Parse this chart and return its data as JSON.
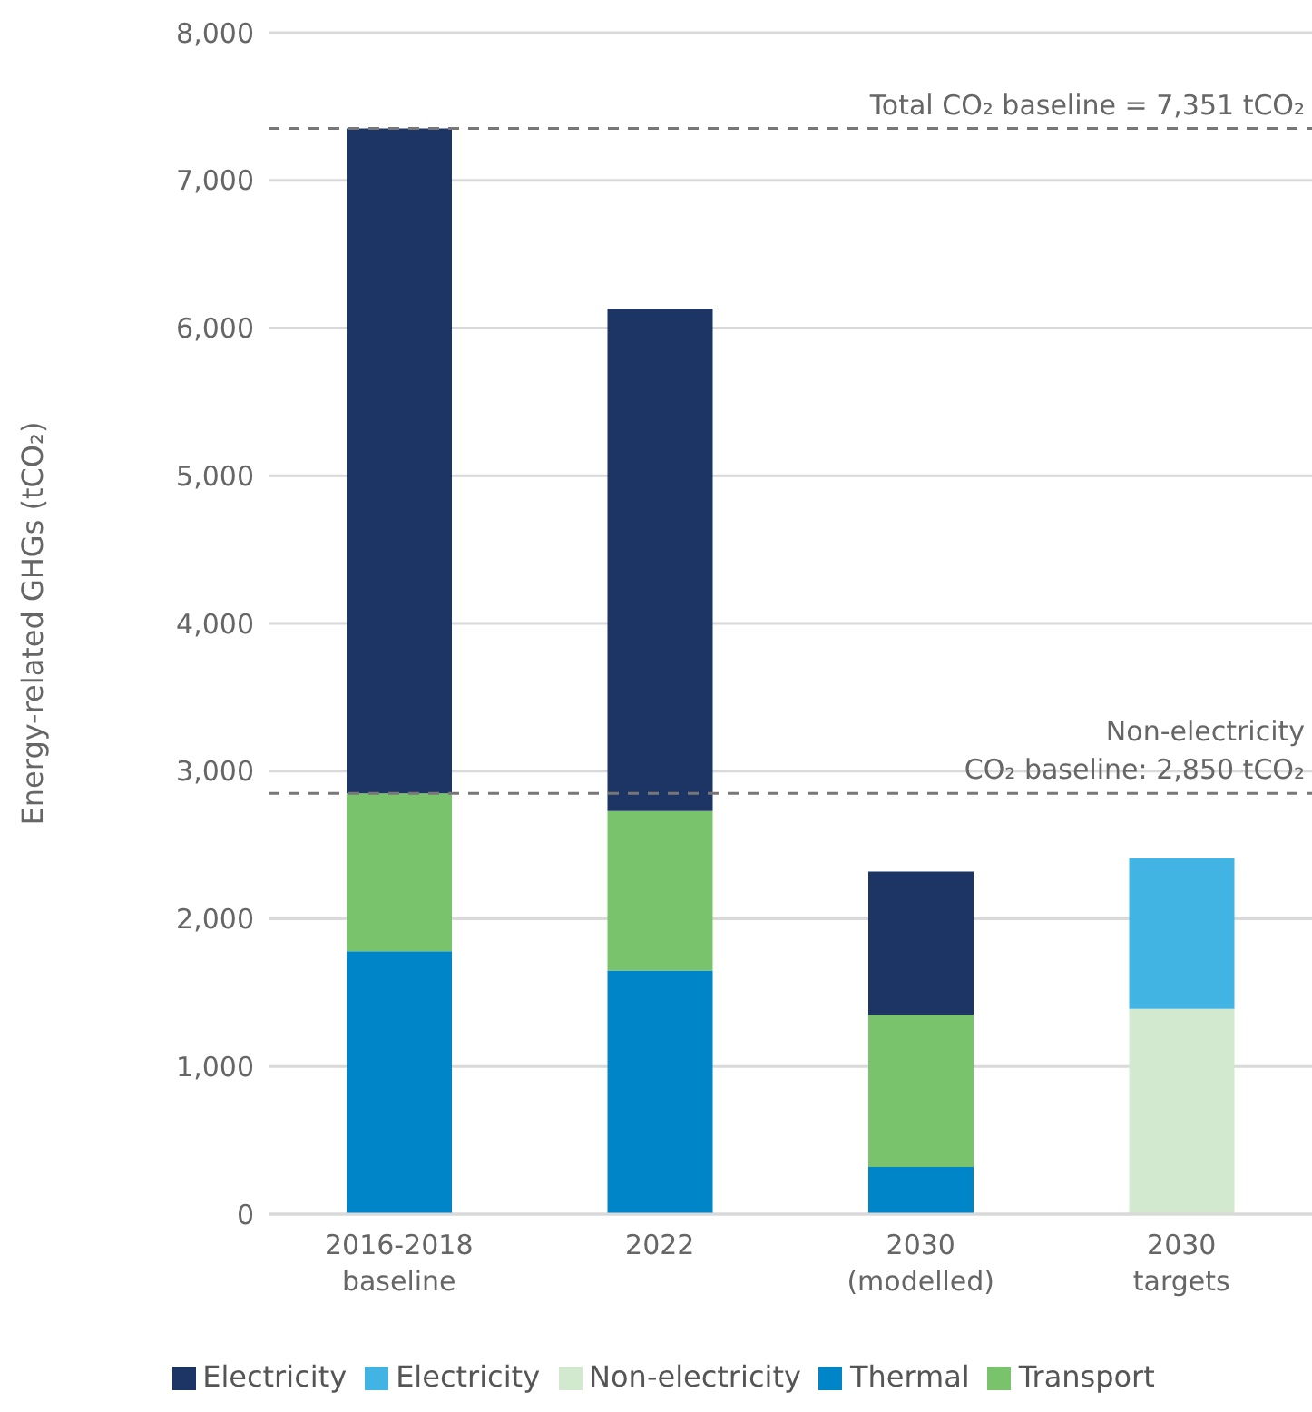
{
  "chart_data": {
    "type": "bar",
    "stacked": true,
    "ylabel": "Energy-related GHGs (tCO₂)",
    "categories": [
      "2016-2018\nbaseline",
      "2022",
      "2030\n(modelled)",
      "2030\ntargets"
    ],
    "series": [
      {
        "name": "Thermal",
        "color": "#0086c8",
        "values": [
          1780,
          1650,
          320,
          null
        ]
      },
      {
        "name": "Transport",
        "color": "#78c36c",
        "values": [
          1070,
          1080,
          1030,
          null
        ]
      },
      {
        "name": "Electricity",
        "color": "#1d3565",
        "values": [
          4501,
          3400,
          970,
          null
        ]
      },
      {
        "name": "Non-electricity",
        "color": "#d3e9cf",
        "values": [
          null,
          null,
          null,
          1390
        ]
      },
      {
        "name": "Electricity",
        "color": "#42b4e3",
        "values": [
          null,
          null,
          null,
          1020
        ]
      }
    ],
    "ylim": [
      0,
      8000
    ],
    "yticks": [
      {
        "value": 0,
        "label": "0"
      },
      {
        "value": 1000,
        "label": "1,000"
      },
      {
        "value": 2000,
        "label": "2,000"
      },
      {
        "value": 3000,
        "label": "3,000"
      },
      {
        "value": 4000,
        "label": "4,000"
      },
      {
        "value": 5000,
        "label": "5,000"
      },
      {
        "value": 6000,
        "label": "6,000"
      },
      {
        "value": 7000,
        "label": "7,000"
      },
      {
        "value": 8000,
        "label": "8,000"
      }
    ],
    "grid": "y",
    "legend": "bottom",
    "ref_lines": [
      {
        "axis": "y",
        "value": 7351,
        "label": "Total CO₂ baseline = 7,351 tCO₂",
        "color": "#777777",
        "line_style": "dashed"
      },
      {
        "axis": "y",
        "value": 2850,
        "label": "Non-electricity\nCO₂ baseline: 2,850 tCO₂",
        "color": "#777777",
        "line_style": "dashed"
      }
    ]
  }
}
